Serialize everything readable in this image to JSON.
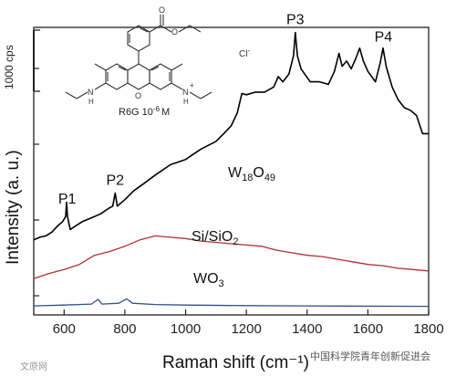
{
  "chart_data": {
    "type": "line",
    "xlabel": "Raman shift (cm⁻¹)",
    "ylabel": "Intensity (a. u.)",
    "xlim": [
      500,
      1800
    ],
    "x_ticks": [
      600,
      800,
      1000,
      1200,
      1400,
      1600,
      1800
    ],
    "y_ticks": "unlabeled",
    "scale_bar_label": "1000 cps",
    "molecule_label": "R6G 10",
    "molecule_exponent": "-6",
    "molecule_unit": "M",
    "counter_ion": "Cl",
    "counter_ion_charge": "-",
    "series": [
      {
        "name": "W18O49",
        "color": "#000000",
        "points": [
          [
            500,
            290
          ],
          [
            520,
            300
          ],
          [
            540,
            305
          ],
          [
            560,
            320
          ],
          [
            580,
            345
          ],
          [
            595,
            360
          ],
          [
            605,
            380
          ],
          [
            608,
            435
          ],
          [
            611,
            380
          ],
          [
            620,
            330
          ],
          [
            640,
            345
          ],
          [
            660,
            360
          ],
          [
            690,
            375
          ],
          [
            720,
            390
          ],
          [
            745,
            410
          ],
          [
            760,
            420
          ],
          [
            768,
            470
          ],
          [
            775,
            420
          ],
          [
            800,
            445
          ],
          [
            830,
            480
          ],
          [
            860,
            505
          ],
          [
            900,
            540
          ],
          [
            950,
            580
          ],
          [
            1000,
            600
          ],
          [
            1050,
            640
          ],
          [
            1100,
            670
          ],
          [
            1130,
            705
          ],
          [
            1150,
            730
          ],
          [
            1170,
            780
          ],
          [
            1185,
            855
          ],
          [
            1200,
            850
          ],
          [
            1230,
            860
          ],
          [
            1260,
            860
          ],
          [
            1290,
            880
          ],
          [
            1305,
            920
          ],
          [
            1320,
            900
          ],
          [
            1340,
            930
          ],
          [
            1355,
            1000
          ],
          [
            1361,
            1090
          ],
          [
            1368,
            1000
          ],
          [
            1380,
            950
          ],
          [
            1410,
            900
          ],
          [
            1440,
            900
          ],
          [
            1470,
            890
          ],
          [
            1490,
            940
          ],
          [
            1505,
            1010
          ],
          [
            1515,
            960
          ],
          [
            1530,
            980
          ],
          [
            1545,
            950
          ],
          [
            1560,
            990
          ],
          [
            1573,
            1030
          ],
          [
            1585,
            980
          ],
          [
            1600,
            940
          ],
          [
            1625,
            900
          ],
          [
            1640,
            970
          ],
          [
            1650,
            1030
          ],
          [
            1660,
            960
          ],
          [
            1680,
            880
          ],
          [
            1700,
            830
          ],
          [
            1720,
            800
          ],
          [
            1740,
            790
          ],
          [
            1760,
            770
          ],
          [
            1780,
            700
          ],
          [
            1800,
            700
          ]
        ]
      },
      {
        "name": "Si/SiO2",
        "color": "#b33030",
        "points": [
          [
            500,
            140
          ],
          [
            550,
            160
          ],
          [
            600,
            175
          ],
          [
            650,
            195
          ],
          [
            700,
            230
          ],
          [
            750,
            245
          ],
          [
            800,
            265
          ],
          [
            850,
            290
          ],
          [
            900,
            305
          ],
          [
            950,
            300
          ],
          [
            1000,
            295
          ],
          [
            1050,
            285
          ],
          [
            1100,
            280
          ],
          [
            1150,
            275
          ],
          [
            1200,
            270
          ],
          [
            1250,
            265
          ],
          [
            1300,
            250
          ],
          [
            1350,
            240
          ],
          [
            1400,
            230
          ],
          [
            1450,
            225
          ],
          [
            1500,
            215
          ],
          [
            1550,
            205
          ],
          [
            1600,
            195
          ],
          [
            1650,
            190
          ],
          [
            1700,
            180
          ],
          [
            1750,
            175
          ],
          [
            1800,
            170
          ]
        ]
      },
      {
        "name": "WO3",
        "color": "#2f4f8f",
        "points": [
          [
            500,
            35
          ],
          [
            600,
            38
          ],
          [
            690,
            42
          ],
          [
            712,
            60
          ],
          [
            725,
            42
          ],
          [
            780,
            45
          ],
          [
            806,
            62
          ],
          [
            825,
            45
          ],
          [
            900,
            40
          ],
          [
            1000,
            38
          ],
          [
            1200,
            36
          ],
          [
            1400,
            35
          ],
          [
            1600,
            34
          ],
          [
            1800,
            33
          ]
        ]
      }
    ],
    "peaks": [
      {
        "label": "P1",
        "x": 610
      },
      {
        "label": "P2",
        "x": 768
      },
      {
        "label": "P3",
        "x": 1361
      },
      {
        "label": "P4",
        "x": 1651
      }
    ],
    "annotations": {
      "w18o49": {
        "base": "W",
        "sub1": "18",
        "mid": "O",
        "sub2": "49"
      },
      "sio2": {
        "base": "Si/SiO",
        "sub": "2"
      },
      "wo3": {
        "base": "WO",
        "sub": "3"
      }
    }
  },
  "watermarks": [
    "中国科学院青年创新促进会",
    "文原网"
  ]
}
